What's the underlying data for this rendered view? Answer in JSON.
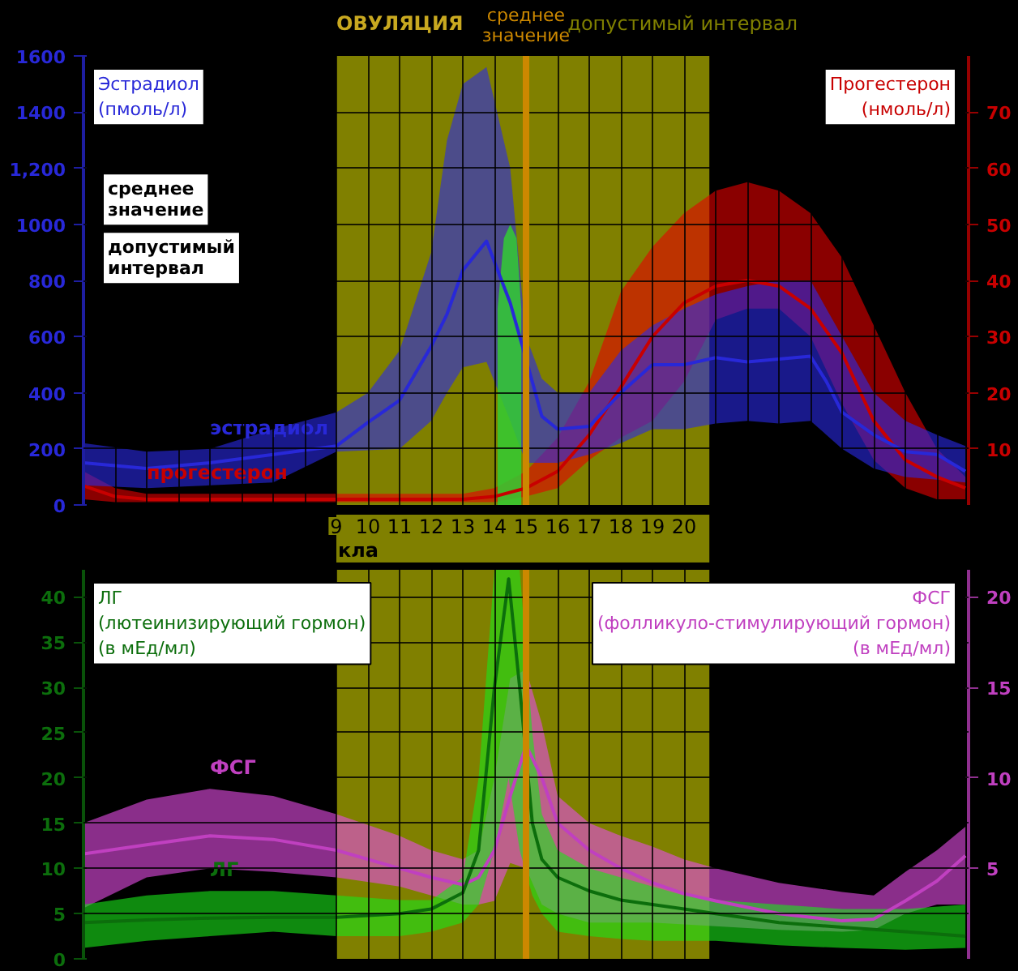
{
  "chart_data": [
    {
      "type": "line",
      "title": "ОВУЛЯЦИЯ",
      "ylabel": "Эстрадиол (пмоль/л)",
      "y2label": "Прогестерон (нмоль/л)",
      "xlim": [
        1,
        29
      ],
      "ylim": [
        0,
        1600
      ],
      "y2lim": [
        0,
        80
      ],
      "xticks": [
        {
          "value": 1,
          "label": null
        },
        {
          "value": 2,
          "label": null
        },
        {
          "value": 3,
          "label": null
        },
        {
          "value": 4,
          "label": null
        },
        {
          "value": 5,
          "label": null
        },
        {
          "value": 6,
          "label": null
        },
        {
          "value": 7,
          "label": null
        },
        {
          "value": 8,
          "label": null
        },
        9,
        10,
        11,
        12,
        13,
        14,
        15,
        16,
        17,
        18,
        19,
        20,
        {
          "value": 21,
          "label": null
        },
        {
          "value": 22,
          "label": null
        },
        {
          "value": 23,
          "label": null
        },
        {
          "value": 24,
          "label": null
        },
        {
          "value": 25,
          "label": null
        },
        {
          "value": 26,
          "label": null
        },
        {
          "value": 27,
          "label": null
        },
        {
          "value": 28,
          "label": null
        },
        {
          "value": 29,
          "label": null
        }
      ],
      "yticks": [
        0,
        200,
        400,
        600,
        800,
        1000,
        {
          "value": 1200,
          "label": "1,200"
        },
        1400,
        1600
      ],
      "y2ticks": [
        10,
        20,
        30,
        40,
        50,
        60,
        70
      ],
      "grid": true,
      "legend": false,
      "bands": [
        {
          "axis": "x",
          "from": 9,
          "to": 20.8,
          "label": "допустимый интервал",
          "color": "#808000"
        }
      ],
      "ref_lines": [
        {
          "axis": "x",
          "value": 15,
          "label": "среднее значение",
          "color": "#cc8800"
        }
      ],
      "annotations": [
        "кла",
        "среднее значение",
        "допустимый интервал"
      ],
      "series": [
        {
          "name": "прогестерон",
          "color": "#c80000",
          "axis": "y2",
          "x": [
            1,
            2,
            3,
            5,
            7,
            9,
            11,
            13,
            14,
            15,
            16,
            17,
            18,
            19,
            20,
            21,
            22,
            23,
            24,
            25,
            26,
            27,
            28,
            28.9
          ],
          "values": [
            3.4,
            1.5,
            1,
            1,
            1,
            1,
            1,
            1,
            1.5,
            3,
            6,
            12.5,
            21,
            30,
            36,
            39,
            40,
            39,
            35,
            27,
            15,
            8,
            5,
            3
          ],
          "lower": [
            1,
            0.5,
            0.5,
            0.5,
            0.5,
            0.5,
            0.5,
            0.5,
            0.5,
            1.5,
            3,
            8,
            12,
            15,
            22,
            33,
            35,
            35,
            30,
            18,
            8,
            3,
            1,
            1
          ],
          "upper": [
            6,
            3,
            2,
            2,
            2,
            2,
            2,
            2,
            3,
            6,
            12,
            22,
            38,
            46,
            52,
            56,
            57.5,
            56,
            52,
            44,
            32,
            20,
            10,
            5
          ]
        },
        {
          "name": "эстрадиол",
          "color": "#2828d8",
          "x": [
            1,
            3,
            5,
            7,
            9,
            10,
            11,
            12,
            12.5,
            13,
            13.75,
            14.5,
            15,
            15.5,
            16,
            17,
            18,
            19,
            20,
            21,
            22,
            23,
            24,
            24.5,
            25,
            26,
            27,
            28,
            28.9
          ],
          "values": [
            150,
            130,
            150,
            180,
            210,
            294,
            373,
            565,
            680,
            836,
            940,
            720,
            520,
            316,
            270,
            280,
            400,
            500,
            500,
            525,
            510,
            520,
            530,
            440,
            330,
            250,
            190,
            180,
            120
          ],
          "lower": [
            70,
            60,
            70,
            80,
            190,
            195,
            200,
            300,
            400,
            490,
            510,
            300,
            150,
            150,
            150,
            180,
            220,
            270,
            270,
            290,
            300,
            290,
            300,
            250,
            200,
            130,
            100,
            90,
            80
          ],
          "upper": [
            220,
            190,
            200,
            270,
            330,
            400,
            550,
            900,
            1300,
            1500,
            1560,
            1200,
            600,
            450,
            400,
            400,
            550,
            640,
            700,
            750,
            780,
            800,
            800,
            700,
            600,
            400,
            300,
            250,
            210
          ]
        },
        {
          "type": "area",
          "color": "#33cc33",
          "x": [
            14.1,
            14.1,
            14.3,
            14.5,
            14.7,
            14.85,
            14.85
          ],
          "values": [
            0,
            700,
            950,
            1000,
            950,
            700,
            0
          ]
        }
      ]
    },
    {
      "type": "line",
      "ylabel": "ЛГ (лютеинизирующий гормон) (в мЕд/мл)",
      "y2label": "ФСГ (фолликуло-стимулирующий гормон) (в мЕд/мл)",
      "xlim": [
        1,
        29
      ],
      "ylim": [
        0,
        43
      ],
      "y2lim": [
        0,
        21.5
      ],
      "tick_labels": "y",
      "xticks": [
        9,
        10,
        11,
        12,
        13,
        14,
        15,
        16,
        17,
        18,
        19,
        20
      ],
      "yticks": [
        0,
        5,
        10,
        15,
        20,
        25,
        30,
        35,
        40
      ],
      "y2ticks": [
        5,
        10,
        15,
        20
      ],
      "grid": true,
      "legend": false,
      "bands": [
        {
          "axis": "x",
          "from": 9,
          "to": 20.8,
          "color": "#808000"
        }
      ],
      "ref_lines": [
        {
          "axis": "x",
          "value": 15,
          "color": "#cc8800"
        }
      ],
      "series": [
        {
          "name": "ФСГ",
          "color": "#c040c0",
          "axis": "y2",
          "x": [
            1,
            3,
            5,
            7,
            9,
            11,
            12,
            13,
            13.5,
            14,
            14.5,
            15,
            15.5,
            16,
            17,
            18,
            19,
            20,
            21,
            23,
            25,
            26,
            27,
            28,
            28.9
          ],
          "values": [
            5.8,
            6.3,
            6.8,
            6.6,
            6,
            5,
            4.5,
            4.1,
            4.5,
            6,
            9,
            11.8,
            10,
            7.5,
            6,
            5,
            4.2,
            3.6,
            3.2,
            2.5,
            2.1,
            2.2,
            3.2,
            4.3,
            5.7
          ],
          "lower": [
            2.8,
            4.5,
            5,
            4.8,
            4.5,
            4,
            3.5,
            3,
            3,
            3.2,
            5.3,
            5,
            3,
            2.5,
            2,
            2,
            2,
            1.9,
            1.8,
            1.6,
            1.5,
            1.6,
            2.5,
            3,
            3
          ],
          "upper": [
            7.5,
            8.8,
            9.4,
            9,
            8,
            6.8,
            6,
            5.5,
            6,
            10,
            15.5,
            16,
            13,
            9,
            7.5,
            6.8,
            6.2,
            5.5,
            5,
            4.2,
            3.7,
            3.5,
            4.8,
            6,
            7.3
          ]
        },
        {
          "name": "ЛГ",
          "color": "#0c6e0c",
          "x": [
            1,
            3,
            5,
            7,
            9,
            11,
            12,
            13,
            13.5,
            14,
            14.45,
            14.8,
            15.2,
            15.5,
            16,
            17,
            18,
            19,
            20,
            21,
            23,
            25,
            27,
            28.9
          ],
          "values": [
            4,
            4.3,
            4.5,
            4.6,
            4.6,
            5,
            5.5,
            7.3,
            12,
            30,
            42,
            30,
            15,
            11,
            9,
            7.5,
            6.5,
            6,
            5.5,
            5,
            4,
            3.5,
            3,
            2.5
          ],
          "lower": [
            1.2,
            2,
            2.5,
            3,
            2.5,
            2.5,
            3,
            4,
            6,
            12,
            20,
            12,
            7,
            5,
            3,
            2.5,
            2.2,
            2,
            2,
            2,
            1.5,
            1.2,
            1,
            1.2
          ],
          "upper": [
            6,
            7,
            7.5,
            7.5,
            7,
            6.5,
            6.5,
            9,
            20,
            43,
            43,
            43,
            25,
            16,
            12,
            10,
            9,
            8,
            7,
            6.5,
            6,
            5.5,
            5.5,
            6
          ]
        }
      ]
    }
  ]
}
